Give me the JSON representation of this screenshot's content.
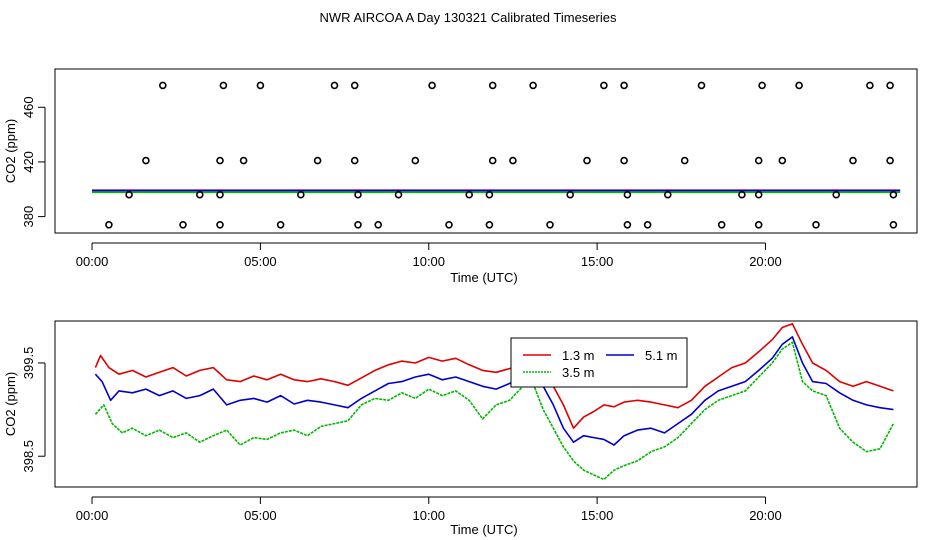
{
  "title": "NWR AIRCOA A  Day 130321  Calibrated Timeseries",
  "colors": {
    "red": "#e00000",
    "blue": "#0000cc",
    "green": "#00b800",
    "black": "#000000"
  },
  "chart_data": [
    {
      "type": "scatter",
      "xlabel": "Time (UTC)",
      "ylabel": "CO2 (ppm)",
      "xlim": [
        -1.1,
        24.5
      ],
      "ylim": [
        368,
        488
      ],
      "xticks": [
        0,
        5,
        10,
        15,
        20
      ],
      "xtick_labels": [
        "00:00",
        "05:00",
        "10:00",
        "15:00",
        "20:00"
      ],
      "yticks": [
        380,
        420,
        460
      ],
      "ytick_labels": [
        "380",
        "420",
        "460"
      ],
      "markers": [
        {
          "name": "marker-level",
          "y": 476,
          "x": [
            2.1,
            3.9,
            5.0,
            7.2,
            7.8,
            10.1,
            11.9,
            13.1,
            15.2,
            15.8,
            18.1,
            19.9,
            21.0,
            23.1,
            23.7
          ]
        },
        {
          "name": "marker-level",
          "y": 421,
          "x": [
            1.6,
            3.8,
            4.5,
            6.7,
            7.8,
            9.6,
            11.9,
            12.5,
            14.7,
            15.8,
            17.6,
            19.8,
            20.5,
            22.6,
            23.7
          ]
        },
        {
          "name": "marker-level",
          "y": 396,
          "x": [
            1.1,
            3.2,
            3.8,
            6.2,
            7.9,
            9.1,
            11.2,
            11.8,
            14.2,
            15.9,
            17.1,
            19.3,
            19.8,
            22.1,
            23.8
          ]
        },
        {
          "name": "marker-level",
          "y": 374,
          "x": [
            0.5,
            2.7,
            3.8,
            5.6,
            7.9,
            8.5,
            10.6,
            11.8,
            13.6,
            15.9,
            16.5,
            18.7,
            19.8,
            21.5,
            23.8
          ]
        }
      ],
      "series": [
        {
          "name": "1.3 m",
          "color": "#e00000",
          "x": [
            0,
            24
          ],
          "y": [
            399.3,
            399.3
          ]
        },
        {
          "name": "3.5 m",
          "color": "#00b800",
          "x": [
            0,
            24
          ],
          "y": [
            397.8,
            397.8
          ]
        },
        {
          "name": "5.1 m",
          "color": "#0000cc",
          "x": [
            0,
            24
          ],
          "y": [
            399.0,
            399.0
          ]
        }
      ]
    },
    {
      "type": "line",
      "xlabel": "Time (UTC)",
      "ylabel": "CO2 (ppm)",
      "xlim": [
        -1.1,
        24.5
      ],
      "ylim": [
        398.17,
        399.95
      ],
      "xticks": [
        0,
        5,
        10,
        15,
        20
      ],
      "xtick_labels": [
        "00:00",
        "05:00",
        "10:00",
        "15:00",
        "20:00"
      ],
      "yticks": [
        398.5,
        399.5
      ],
      "ytick_labels": [
        "398.5",
        "399.5"
      ],
      "legend": {
        "position": "top-center",
        "entries": [
          "1.3 m",
          "5.1 m",
          "3.5 m"
        ]
      },
      "series": [
        {
          "name": "1.3 m",
          "color": "#e00000",
          "x": [
            0.1,
            0.25,
            0.5,
            0.8,
            1.2,
            1.6,
            2.0,
            2.4,
            2.8,
            3.2,
            3.6,
            4.0,
            4.4,
            4.8,
            5.2,
            5.6,
            6.0,
            6.4,
            6.8,
            7.2,
            7.6,
            8.0,
            8.4,
            8.8,
            9.2,
            9.6,
            10.0,
            10.4,
            10.8,
            11.2,
            11.6,
            12.0,
            12.4,
            12.8,
            13.1,
            13.4,
            13.7,
            14.0,
            14.3,
            14.6,
            14.9,
            15.2,
            15.5,
            15.8,
            16.2,
            16.6,
            17.0,
            17.4,
            17.8,
            18.2,
            18.6,
            19.0,
            19.4,
            19.8,
            20.2,
            20.5,
            20.8,
            21.1,
            21.4,
            21.8,
            22.2,
            22.6,
            23.0,
            23.4,
            23.8
          ],
          "y": [
            399.45,
            399.58,
            399.45,
            399.38,
            399.42,
            399.35,
            399.4,
            399.45,
            399.36,
            399.42,
            399.45,
            399.32,
            399.3,
            399.36,
            399.32,
            399.38,
            399.32,
            399.3,
            399.33,
            399.3,
            399.26,
            399.34,
            399.42,
            399.48,
            399.52,
            399.5,
            399.56,
            399.52,
            399.55,
            399.48,
            399.42,
            399.4,
            399.44,
            399.5,
            399.52,
            399.4,
            399.25,
            399.05,
            398.8,
            398.92,
            398.98,
            399.05,
            399.03,
            399.08,
            399.1,
            399.08,
            399.05,
            399.02,
            399.1,
            399.25,
            399.35,
            399.45,
            399.5,
            399.62,
            399.75,
            399.88,
            399.92,
            399.7,
            399.5,
            399.42,
            399.3,
            399.25,
            399.3,
            399.25,
            399.2
          ]
        },
        {
          "name": "5.1 m",
          "color": "#0000cc",
          "x": [
            0.1,
            0.3,
            0.55,
            0.8,
            1.2,
            1.6,
            2.0,
            2.4,
            2.8,
            3.2,
            3.6,
            4.0,
            4.4,
            4.8,
            5.2,
            5.6,
            6.0,
            6.4,
            6.8,
            7.2,
            7.6,
            8.0,
            8.4,
            8.8,
            9.2,
            9.6,
            10.0,
            10.4,
            10.8,
            11.2,
            11.6,
            12.0,
            12.4,
            12.8,
            13.1,
            13.4,
            13.7,
            14.0,
            14.3,
            14.6,
            14.9,
            15.2,
            15.5,
            15.8,
            16.2,
            16.6,
            17.0,
            17.4,
            17.8,
            18.2,
            18.6,
            19.0,
            19.4,
            19.8,
            20.2,
            20.5,
            20.8,
            21.1,
            21.4,
            21.8,
            22.2,
            22.6,
            23.0,
            23.4,
            23.8
          ],
          "y": [
            399.38,
            399.3,
            399.1,
            399.2,
            399.18,
            399.22,
            399.15,
            399.2,
            399.12,
            399.15,
            399.22,
            399.05,
            399.1,
            399.12,
            399.08,
            399.15,
            399.06,
            399.1,
            399.08,
            399.05,
            399.02,
            399.12,
            399.2,
            399.28,
            399.3,
            399.35,
            399.38,
            399.32,
            399.35,
            399.3,
            399.25,
            399.22,
            399.28,
            399.38,
            399.4,
            399.25,
            399.05,
            398.8,
            398.65,
            398.72,
            398.7,
            398.68,
            398.62,
            398.72,
            398.78,
            398.8,
            398.75,
            398.85,
            398.95,
            399.1,
            399.2,
            399.25,
            399.3,
            399.42,
            399.55,
            399.7,
            399.78,
            399.5,
            399.3,
            399.28,
            399.18,
            399.1,
            399.05,
            399.02,
            399.0
          ]
        },
        {
          "name": "3.5 m",
          "color": "#00b800",
          "x": [
            0.1,
            0.35,
            0.6,
            0.9,
            1.2,
            1.6,
            2.0,
            2.4,
            2.8,
            3.2,
            3.6,
            4.0,
            4.4,
            4.8,
            5.2,
            5.6,
            6.0,
            6.4,
            6.8,
            7.2,
            7.6,
            8.0,
            8.4,
            8.8,
            9.2,
            9.6,
            10.0,
            10.4,
            10.8,
            11.2,
            11.6,
            12.0,
            12.4,
            12.8,
            13.1,
            13.4,
            13.7,
            14.0,
            14.3,
            14.6,
            14.9,
            15.2,
            15.5,
            15.8,
            16.2,
            16.6,
            17.0,
            17.4,
            17.8,
            18.2,
            18.6,
            19.0,
            19.4,
            19.8,
            20.2,
            20.5,
            20.8,
            21.1,
            21.4,
            21.8,
            22.2,
            22.6,
            23.0,
            23.4,
            23.8
          ],
          "y": [
            398.95,
            399.05,
            398.85,
            398.75,
            398.8,
            398.72,
            398.78,
            398.7,
            398.75,
            398.65,
            398.72,
            398.78,
            398.62,
            398.7,
            398.68,
            398.75,
            398.78,
            398.72,
            398.82,
            398.85,
            398.88,
            399.05,
            399.12,
            399.1,
            399.18,
            399.12,
            399.22,
            399.15,
            399.2,
            399.1,
            398.9,
            399.05,
            399.1,
            399.25,
            399.28,
            399.0,
            398.8,
            398.6,
            398.45,
            398.35,
            398.3,
            398.25,
            398.35,
            398.4,
            398.45,
            398.55,
            398.6,
            398.7,
            398.85,
            399.0,
            399.1,
            399.15,
            399.2,
            399.35,
            399.5,
            399.65,
            399.72,
            399.3,
            399.2,
            399.15,
            398.8,
            398.65,
            398.55,
            398.58,
            398.85
          ]
        }
      ]
    }
  ]
}
